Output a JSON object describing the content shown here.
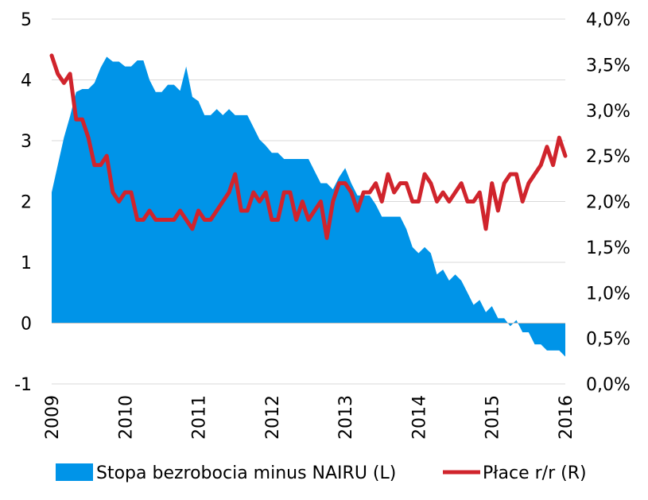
{
  "chart_data": {
    "type": "area+line",
    "x_labels": [
      "2009",
      "2010",
      "2011",
      "2012",
      "2013",
      "2014",
      "2015",
      "2016"
    ],
    "left_axis": {
      "ylim": [
        -1,
        5
      ],
      "ticks": [
        "-1",
        "0",
        "1",
        "2",
        "3",
        "4",
        "5"
      ]
    },
    "right_axis": {
      "ylim": [
        0.0,
        4.0
      ],
      "ticks": [
        "0,0%",
        "0,5%",
        "1,0%",
        "1,5%",
        "2,0%",
        "2,5%",
        "3,0%",
        "3,5%",
        "4,0%"
      ]
    },
    "grid": "horizontal",
    "legend_position": "bottom",
    "series": [
      {
        "name": "Stopa bezrobocia minus NAIRU (L)",
        "type": "area",
        "axis": "left",
        "color": "#0094e8",
        "x": [
          2009.0,
          2009.083,
          2009.167,
          2009.25,
          2009.333,
          2009.417,
          2009.5,
          2009.583,
          2009.667,
          2009.75,
          2009.833,
          2009.917,
          2010.0,
          2010.083,
          2010.167,
          2010.25,
          2010.333,
          2010.417,
          2010.5,
          2010.583,
          2010.667,
          2010.75,
          2010.833,
          2010.917,
          2011.0,
          2011.083,
          2011.167,
          2011.25,
          2011.333,
          2011.417,
          2011.5,
          2011.583,
          2011.667,
          2011.75,
          2011.833,
          2011.917,
          2012.0,
          2012.083,
          2012.167,
          2012.25,
          2012.333,
          2012.417,
          2012.5,
          2012.583,
          2012.667,
          2012.75,
          2012.833,
          2012.917,
          2013.0,
          2013.083,
          2013.167,
          2013.25,
          2013.333,
          2013.417,
          2013.5,
          2013.583,
          2013.667,
          2013.75,
          2013.833,
          2013.917,
          2014.0,
          2014.083,
          2014.167,
          2014.25,
          2014.333,
          2014.417,
          2014.5,
          2014.583,
          2014.667,
          2014.75,
          2014.833,
          2014.917,
          2015.0,
          2015.083,
          2015.167,
          2015.25,
          2015.333,
          2015.417,
          2015.5,
          2015.583,
          2015.667,
          2015.75,
          2015.833,
          2015.917,
          2016.0
        ],
        "values": [
          2.15,
          2.6,
          3.05,
          3.4,
          3.8,
          3.85,
          3.85,
          3.95,
          4.2,
          4.38,
          4.3,
          4.3,
          4.22,
          4.22,
          4.32,
          4.32,
          4.0,
          3.8,
          3.8,
          3.92,
          3.92,
          3.82,
          4.22,
          3.72,
          3.65,
          3.42,
          3.42,
          3.52,
          3.42,
          3.52,
          3.42,
          3.42,
          3.42,
          3.22,
          3.02,
          2.92,
          2.8,
          2.8,
          2.7,
          2.7,
          2.7,
          2.7,
          2.7,
          2.5,
          2.3,
          2.3,
          2.2,
          2.4,
          2.55,
          2.3,
          2.1,
          2.1,
          2.1,
          1.95,
          1.75,
          1.75,
          1.75,
          1.75,
          1.55,
          1.25,
          1.15,
          1.25,
          1.15,
          0.8,
          0.88,
          0.7,
          0.8,
          0.7,
          0.5,
          0.3,
          0.38,
          0.18,
          0.28,
          0.08,
          0.08,
          -0.05,
          0.05,
          -0.15,
          -0.15,
          -0.35,
          -0.35,
          -0.45,
          -0.45,
          -0.45,
          -0.55
        ]
      },
      {
        "name": "Płace r/r (R)",
        "type": "line",
        "axis": "right",
        "color": "#d0242c",
        "x": [
          2009.0,
          2009.083,
          2009.167,
          2009.25,
          2009.333,
          2009.417,
          2009.5,
          2009.583,
          2009.667,
          2009.75,
          2009.833,
          2009.917,
          2010.0,
          2010.083,
          2010.167,
          2010.25,
          2010.333,
          2010.417,
          2010.5,
          2010.583,
          2010.667,
          2010.75,
          2010.833,
          2010.917,
          2011.0,
          2011.083,
          2011.167,
          2011.25,
          2011.333,
          2011.417,
          2011.5,
          2011.583,
          2011.667,
          2011.75,
          2011.833,
          2011.917,
          2012.0,
          2012.083,
          2012.167,
          2012.25,
          2012.333,
          2012.417,
          2012.5,
          2012.583,
          2012.667,
          2012.75,
          2012.833,
          2012.917,
          2013.0,
          2013.083,
          2013.167,
          2013.25,
          2013.333,
          2013.417,
          2013.5,
          2013.583,
          2013.667,
          2013.75,
          2013.833,
          2013.917,
          2014.0,
          2014.083,
          2014.167,
          2014.25,
          2014.333,
          2014.417,
          2014.5,
          2014.583,
          2014.667,
          2014.75,
          2014.833,
          2014.917,
          2015.0,
          2015.083,
          2015.167,
          2015.25,
          2015.333,
          2015.417,
          2015.5,
          2015.583,
          2015.667,
          2015.75,
          2015.833,
          2015.917,
          2016.0
        ],
        "values": [
          3.6,
          3.4,
          3.3,
          3.4,
          2.9,
          2.9,
          2.7,
          2.4,
          2.4,
          2.5,
          2.1,
          2.0,
          2.1,
          2.1,
          1.8,
          1.8,
          1.9,
          1.8,
          1.8,
          1.8,
          1.8,
          1.9,
          1.8,
          1.7,
          1.9,
          1.8,
          1.8,
          1.9,
          2.0,
          2.1,
          2.3,
          1.9,
          1.9,
          2.1,
          2.0,
          2.1,
          1.8,
          1.8,
          2.1,
          2.1,
          1.8,
          2.0,
          1.8,
          1.9,
          2.0,
          1.6,
          2.0,
          2.2,
          2.2,
          2.1,
          1.9,
          2.1,
          2.1,
          2.2,
          2.0,
          2.3,
          2.1,
          2.2,
          2.2,
          2.0,
          2.0,
          2.3,
          2.2,
          2.0,
          2.1,
          2.0,
          2.1,
          2.2,
          2.0,
          2.0,
          2.1,
          1.7,
          2.2,
          1.9,
          2.2,
          2.3,
          2.3,
          2.0,
          2.2,
          2.3,
          2.4,
          2.6,
          2.4,
          2.7,
          2.5
        ]
      }
    ]
  }
}
